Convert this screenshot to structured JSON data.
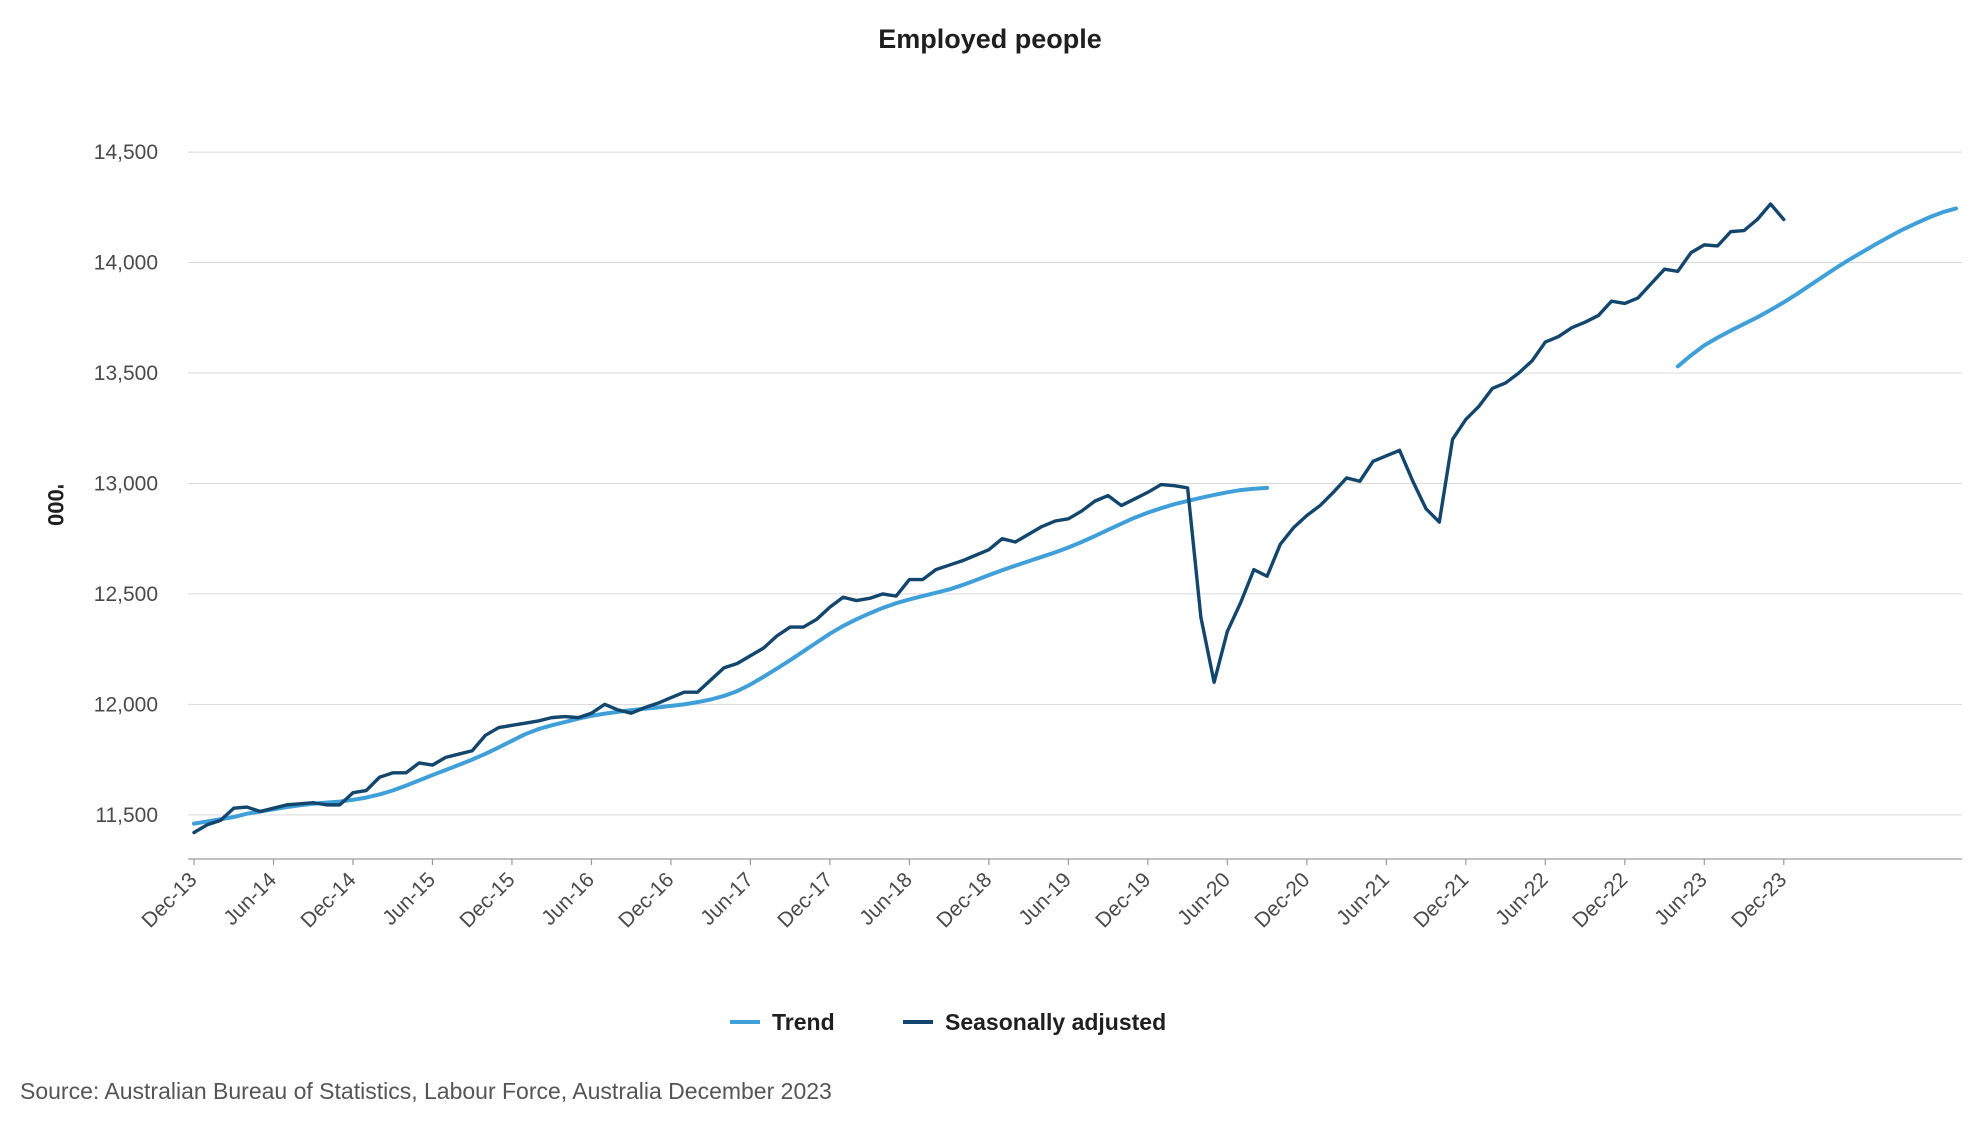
{
  "chart_data": {
    "type": "line",
    "title": "Employed people",
    "ylabel": "'000",
    "xlabel": "",
    "ylim": [
      11300,
      14600
    ],
    "yticks": [
      "11,500",
      "12,000",
      "12,500",
      "13,000",
      "13,500",
      "14,000",
      "14,500"
    ],
    "ytick_values": [
      11500,
      12000,
      12500,
      13000,
      13500,
      14000,
      14500
    ],
    "xticks": [
      "Dec-13",
      "Jun-14",
      "Dec-14",
      "Jun-15",
      "Dec-15",
      "Jun-16",
      "Dec-16",
      "Jun-17",
      "Dec-17",
      "Jun-18",
      "Dec-18",
      "Jun-19",
      "Dec-19",
      "Jun-20",
      "Dec-20",
      "Jun-21",
      "Dec-21",
      "Jun-22",
      "Dec-22",
      "Jun-23",
      "Dec-23"
    ],
    "x_start": "Dec-13",
    "grid": true,
    "legend_position": "bottom-center",
    "series": [
      {
        "name": "Trend",
        "color": "#3f9fd8",
        "values": [
          11460,
          11470,
          11480,
          11490,
          11505,
          11515,
          11525,
          11535,
          11543,
          11550,
          11555,
          11560,
          11568,
          11578,
          11592,
          11610,
          11632,
          11656,
          11680,
          11703,
          11726,
          11750,
          11776,
          11805,
          11835,
          11865,
          11888,
          11905,
          11920,
          11935,
          11948,
          11958,
          11966,
          11974,
          11980,
          11986,
          11993,
          12000,
          12010,
          12022,
          12038,
          12060,
          12090,
          12125,
          12162,
          12200,
          12240,
          12280,
          12320,
          12355,
          12385,
          12412,
          12437,
          12458,
          12475,
          12490,
          12505,
          12520,
          12540,
          12562,
          12585,
          12607,
          12628,
          12648,
          12668,
          12688,
          12710,
          12735,
          12762,
          12790,
          12818,
          12845,
          12868,
          12888,
          12906,
          12921,
          12935,
          12948,
          12960,
          12970,
          12976,
          12980,
          null,
          null,
          null,
          null,
          null,
          null,
          null,
          null,
          null,
          null,
          null,
          null,
          null,
          null,
          null,
          null,
          null,
          null,
          null,
          null,
          null,
          null,
          null,
          null,
          null,
          null,
          null,
          null,
          null,
          null,
          13530,
          13580,
          13625,
          13660,
          13692,
          13722,
          13752,
          13785,
          13820,
          13858,
          13898,
          13938,
          13978,
          14015,
          14050,
          14085,
          14118,
          14150,
          14178,
          14205,
          14228,
          14245
        ]
      },
      {
        "name": "Seasonally adjusted",
        "color": "#12466c",
        "values": [
          11420,
          11455,
          11475,
          11530,
          11535,
          11515,
          11530,
          11545,
          11550,
          11555,
          11545,
          11545,
          11600,
          11610,
          11670,
          11690,
          11690,
          11735,
          11725,
          11760,
          11775,
          11790,
          11860,
          11895,
          11905,
          11915,
          11925,
          11940,
          11945,
          11940,
          11960,
          12000,
          11975,
          11960,
          11985,
          12005,
          12030,
          12055,
          12055,
          12110,
          12165,
          12185,
          12220,
          12255,
          12310,
          12350,
          12350,
          12385,
          12440,
          12485,
          12470,
          12480,
          12500,
          12490,
          12565,
          12565,
          12610,
          12630,
          12650,
          12675,
          12700,
          12750,
          12735,
          12770,
          12805,
          12830,
          12840,
          12875,
          12920,
          12945,
          12900,
          12930,
          12960,
          12995,
          12990,
          12980,
          12395,
          12100,
          12330,
          12460,
          12610,
          12580,
          12725,
          12800,
          12855,
          12900,
          12960,
          13025,
          13010,
          13100,
          13125,
          13150,
          13010,
          12885,
          12825,
          13200,
          13290,
          13350,
          13430,
          13455,
          13500,
          13555,
          13640,
          13665,
          13705,
          13730,
          13760,
          13825,
          13815,
          13840,
          13905,
          13970,
          13960,
          14045,
          14080,
          14075,
          14140,
          14145,
          14195,
          14265,
          14195
        ]
      }
    ]
  },
  "source": "Source: Australian Bureau of Statistics, Labour Force, Australia December 2023"
}
